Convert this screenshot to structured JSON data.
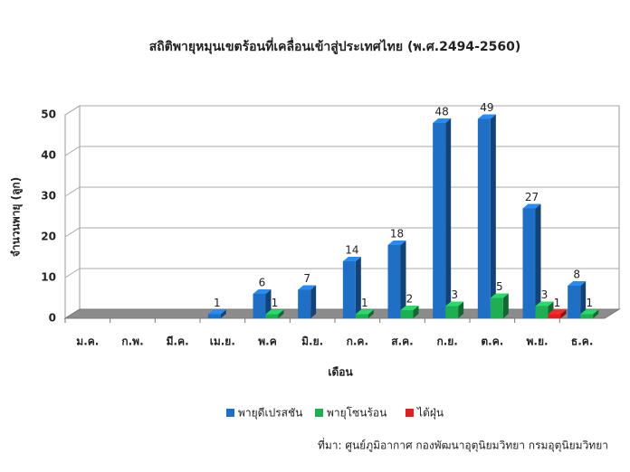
{
  "chart_data": {
    "type": "bar",
    "title": "สถิติพายุหมุนเขตร้อนที่เคลื่อนเข้าสู่ประเทศไทย (พ.ศ.2494-2560)",
    "y_label": "จำนวนพายุ (ลูก)",
    "x_label": "เดือน",
    "source": "ที่มา: ศูนย์ภูมิอากาศ กองพัฒนาอุตุนิยมวิทยา กรมอุตุนิยมวิทยา",
    "categories": [
      "ม.ค.",
      "ก.พ.",
      "มี.ค.",
      "เม.ย.",
      "พ.ค",
      "มิ.ย.",
      "ก.ค.",
      "ส.ค.",
      "ก.ย.",
      "ต.ค.",
      "พ.ย.",
      "ธ.ค."
    ],
    "series": [
      {
        "name": "พายุดีเปรสชัน",
        "color": "#1f6fc5",
        "values": [
          null,
          null,
          null,
          1,
          6,
          7,
          14,
          18,
          48,
          49,
          27,
          8
        ]
      },
      {
        "name": "พายุโซนร้อน",
        "color": "#1fae54",
        "values": [
          null,
          null,
          null,
          null,
          1,
          null,
          1,
          2,
          3,
          5,
          3,
          1
        ]
      },
      {
        "name": "ไต้ฝุ่น",
        "color": "#e02020",
        "values": [
          null,
          null,
          null,
          null,
          null,
          null,
          null,
          null,
          null,
          null,
          1,
          null
        ]
      }
    ],
    "ylim": [
      0,
      50
    ],
    "yticks": [
      0,
      10,
      20,
      30,
      40,
      50
    ],
    "grid": true,
    "legend": "bottom"
  }
}
